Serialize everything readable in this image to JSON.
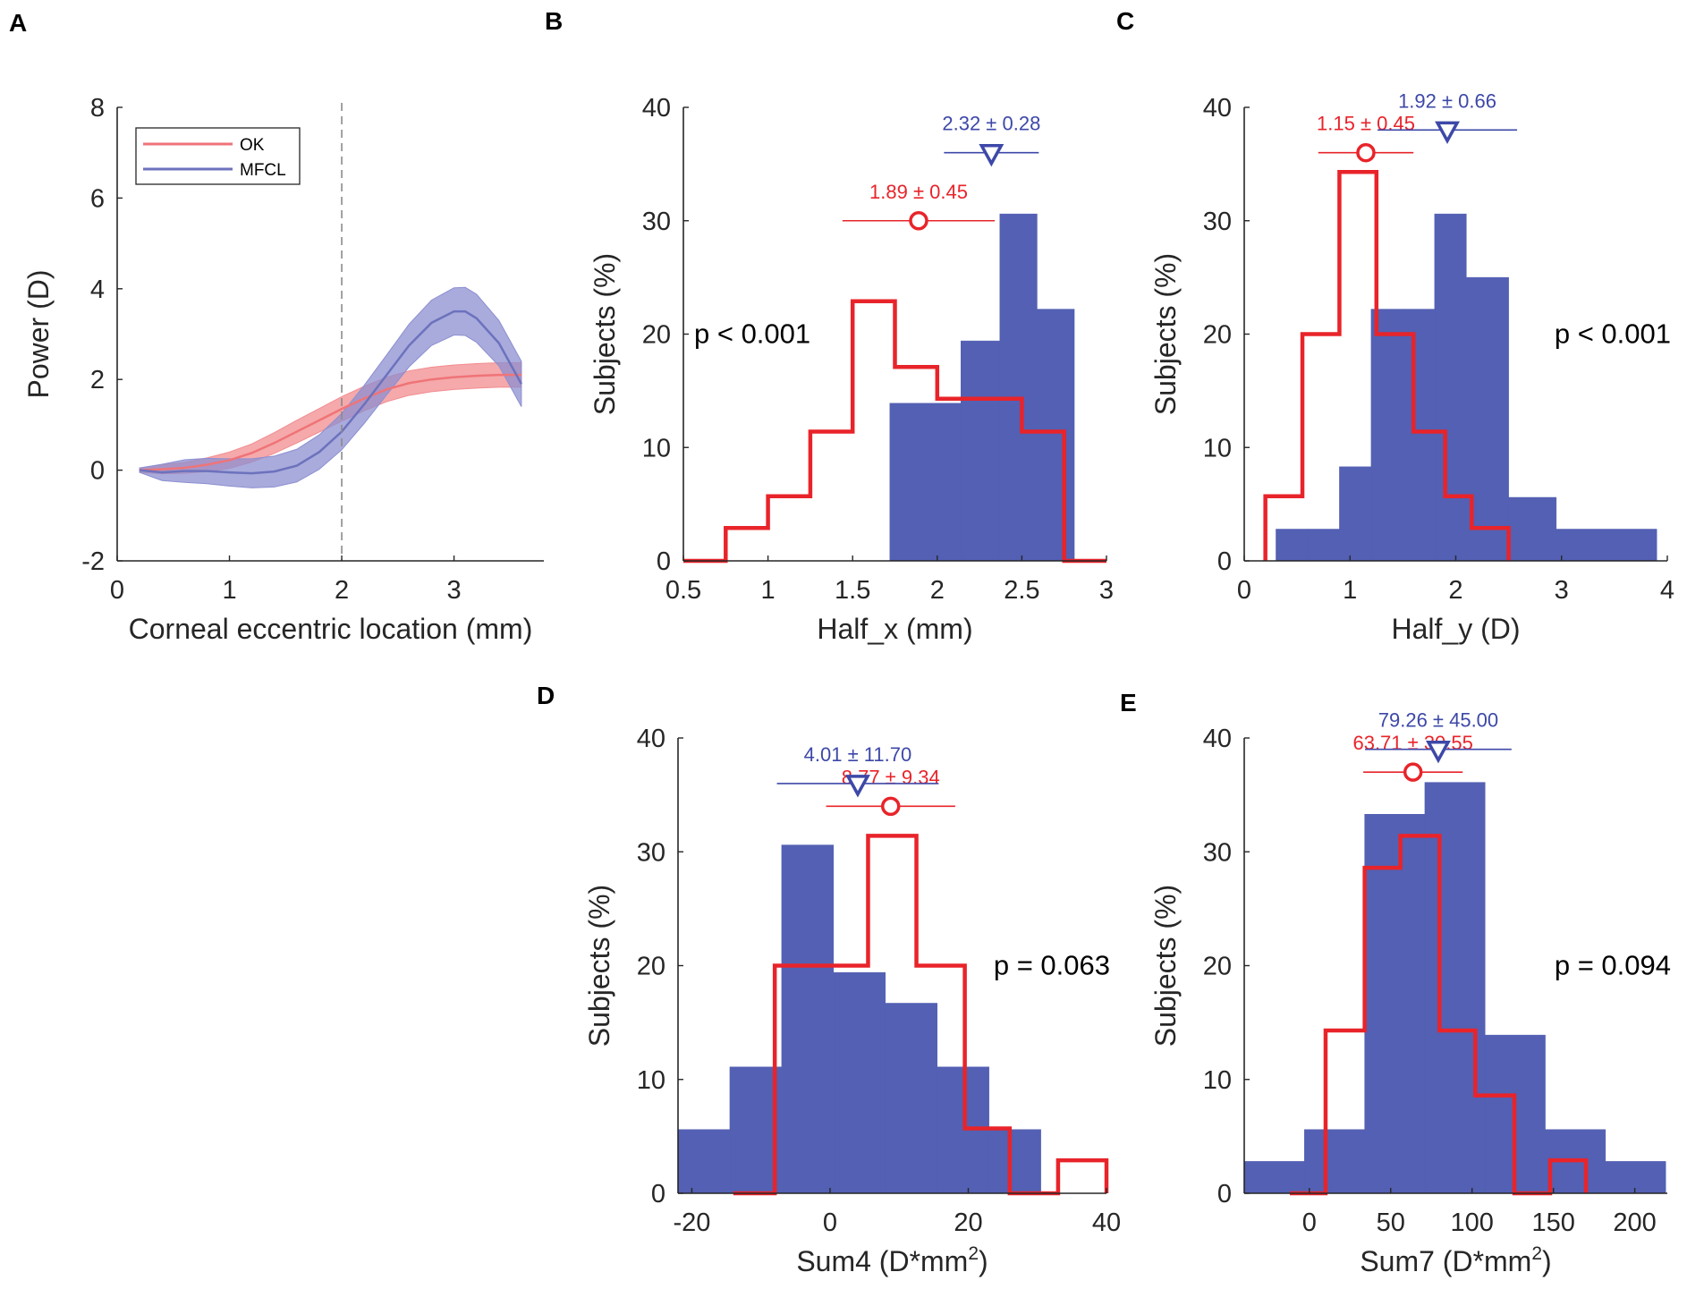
{
  "colors": {
    "ok": "#e8242a",
    "mfcl": "#3d48a8",
    "mfcl_fill": "#5360b3",
    "ok_band": "#f28c8f",
    "mfcl_band": "#8c8fd0",
    "axis": "#262626"
  },
  "chart_data": [
    {
      "panel": "A",
      "type": "line",
      "xlabel": "Corneal eccentric location (mm)",
      "ylabel": "Power (D)",
      "xlim": [
        0,
        3.8
      ],
      "ylim": [
        -2,
        8
      ],
      "xticks": [
        0,
        1,
        2,
        3
      ],
      "yticks": [
        -2,
        0,
        2,
        4,
        6,
        8
      ],
      "vline": 2,
      "legend": {
        "position": "top-left"
      },
      "series": [
        {
          "name": "OK",
          "color_key": "ok",
          "x": [
            0.2,
            0.4,
            0.6,
            0.8,
            1.0,
            1.2,
            1.4,
            1.6,
            1.8,
            2.0,
            2.2,
            2.4,
            2.6,
            2.8,
            3.0,
            3.2,
            3.4,
            3.6
          ],
          "y": [
            0.0,
            0.02,
            0.05,
            0.12,
            0.22,
            0.38,
            0.6,
            0.85,
            1.1,
            1.35,
            1.58,
            1.78,
            1.92,
            2.0,
            2.05,
            2.08,
            2.1,
            2.1
          ],
          "band": [
            0.05,
            0.1,
            0.12,
            0.15,
            0.18,
            0.2,
            0.23,
            0.25,
            0.26,
            0.27,
            0.27,
            0.27,
            0.27,
            0.27,
            0.27,
            0.27,
            0.27,
            0.27
          ]
        },
        {
          "name": "MFCL",
          "color_key": "mfcl",
          "x": [
            0.2,
            0.4,
            0.6,
            0.8,
            1.0,
            1.2,
            1.4,
            1.6,
            1.8,
            2.0,
            2.2,
            2.4,
            2.6,
            2.8,
            3.0,
            3.1,
            3.2,
            3.4,
            3.6
          ],
          "y": [
            0.0,
            -0.05,
            -0.02,
            -0.02,
            -0.05,
            -0.07,
            -0.03,
            0.1,
            0.4,
            0.85,
            1.45,
            2.1,
            2.75,
            3.25,
            3.5,
            3.5,
            3.35,
            2.8,
            1.9
          ],
          "band": [
            0.05,
            0.18,
            0.25,
            0.28,
            0.3,
            0.32,
            0.34,
            0.36,
            0.38,
            0.4,
            0.42,
            0.44,
            0.47,
            0.5,
            0.52,
            0.53,
            0.53,
            0.5,
            0.5
          ]
        }
      ]
    },
    {
      "panel": "B",
      "type": "bar",
      "xlabel": "Half_x (mm)",
      "ylabel": "Subjects (%)",
      "xlim": [
        0.5,
        3
      ],
      "ylim": [
        0,
        40
      ],
      "xticks": [
        "0.5",
        "1",
        "1.5",
        "2",
        "2.5",
        "3"
      ],
      "yticks": [
        0,
        10,
        20,
        30,
        40
      ],
      "p_value": "p < 0.001",
      "p_position": "left",
      "mfcl_hist": {
        "edges": [
          1.72,
          2.14,
          2.37,
          2.59,
          2.81
        ],
        "values": [
          13.9,
          19.4,
          30.6,
          22.2
        ]
      },
      "ok_hist": {
        "edges": [
          0.5,
          0.75,
          1.0,
          1.25,
          1.5,
          1.75,
          2.0,
          2.25,
          2.5,
          2.75,
          3.0
        ],
        "values": [
          0,
          2.9,
          5.7,
          11.4,
          22.9,
          17.1,
          14.3,
          14.3,
          11.4,
          0
        ]
      },
      "ok_summary": {
        "label": "1.89 ±  0.45",
        "mean": 1.89,
        "sd": 0.45,
        "y": 30
      },
      "mfcl_summary": {
        "label": "2.32 ±  0.28",
        "mean": 2.32,
        "sd": 0.28,
        "y": 36
      }
    },
    {
      "panel": "C",
      "type": "bar",
      "xlabel": "Half_y (D)",
      "ylabel": "Subjects (%)",
      "xlim": [
        0,
        4
      ],
      "ylim": [
        0,
        40
      ],
      "xticks": [
        "0",
        "1",
        "2",
        "3",
        "4"
      ],
      "yticks": [
        0,
        10,
        20,
        30,
        40
      ],
      "p_value": "p < 0.001",
      "p_position": "right",
      "mfcl_hist": {
        "edges": [
          0.3,
          0.6,
          0.9,
          1.2,
          1.5,
          1.8,
          2.1,
          2.5,
          2.95,
          3.9
        ],
        "values": [
          2.8,
          2.8,
          8.3,
          22.2,
          22.2,
          30.6,
          25.0,
          5.6,
          2.8
        ]
      },
      "ok_hist": {
        "edges": [
          0.2,
          0.55,
          0.9,
          1.25,
          1.6,
          1.9,
          2.15,
          2.5
        ],
        "values": [
          5.7,
          20.0,
          34.3,
          20.0,
          11.4,
          5.7,
          2.9
        ]
      },
      "ok_summary": {
        "label": "1.15 ±  0.45",
        "mean": 1.15,
        "sd": 0.45,
        "y": 36
      },
      "mfcl_summary": {
        "label": "1.92 ±  0.66",
        "mean": 1.92,
        "sd": 0.66,
        "y": 38
      }
    },
    {
      "panel": "D",
      "type": "bar",
      "xlabel": "Sum4 (D*mm",
      "xlabel_sup": "2",
      "xlabel_end": ")",
      "ylabel": "Subjects (%)",
      "xlim": [
        -22,
        40
      ],
      "ylim": [
        0,
        40
      ],
      "xticks": [
        "-20",
        "0",
        "20",
        "40"
      ],
      "yticks": [
        0,
        10,
        20,
        30,
        40
      ],
      "p_value": "p =  0.063",
      "p_position": "right",
      "mfcl_hist": {
        "edges": [
          -22,
          -14.5,
          -7,
          0.5,
          8,
          15.5,
          23,
          30.5,
          38
        ],
        "values": [
          5.6,
          11.1,
          30.6,
          19.4,
          16.7,
          11.1,
          5.6,
          0
        ]
      },
      "ok_hist": {
        "edges": [
          -14,
          -8,
          -1.5,
          5.5,
          12.5,
          19.5,
          26,
          33,
          40
        ],
        "values": [
          0,
          20.0,
          20.0,
          31.4,
          20.0,
          5.7,
          0,
          2.9
        ]
      },
      "ok_summary": {
        "label": "8.77 ±  9.34",
        "mean": 8.77,
        "sd": 9.34,
        "y": 34
      },
      "mfcl_summary": {
        "label": "4.01 ± 11.70",
        "mean": 4.01,
        "sd": 11.7,
        "y": 36
      }
    },
    {
      "panel": "E",
      "type": "bar",
      "xlabel": "Sum7 (D*mm",
      "xlabel_sup": "2",
      "xlabel_end": ")",
      "ylabel": "Subjects (%)",
      "xlim": [
        -40,
        220
      ],
      "ylim": [
        0,
        40
      ],
      "xticks": [
        "0",
        "50",
        "100",
        "150",
        "200"
      ],
      "yticks": [
        0,
        10,
        20,
        30,
        40
      ],
      "p_value": "p =  0.094",
      "p_position": "right",
      "mfcl_hist": {
        "edges": [
          -40,
          -3,
          34,
          71,
          108,
          145,
          182,
          219
        ],
        "values": [
          2.8,
          5.6,
          33.3,
          36.1,
          13.9,
          5.6,
          2.8
        ]
      },
      "ok_hist": {
        "edges": [
          -12,
          10,
          34,
          56,
          80,
          102,
          126,
          148,
          170
        ],
        "values": [
          0,
          14.3,
          28.6,
          31.4,
          14.3,
          8.6,
          0,
          2.9
        ]
      },
      "ok_summary": {
        "label": "63.71 ± 30.55",
        "mean": 63.71,
        "sd": 30.55,
        "y": 37
      },
      "mfcl_summary": {
        "label": "79.26 ± 45.00",
        "mean": 79.26,
        "sd": 45.0,
        "y": 39
      }
    }
  ]
}
